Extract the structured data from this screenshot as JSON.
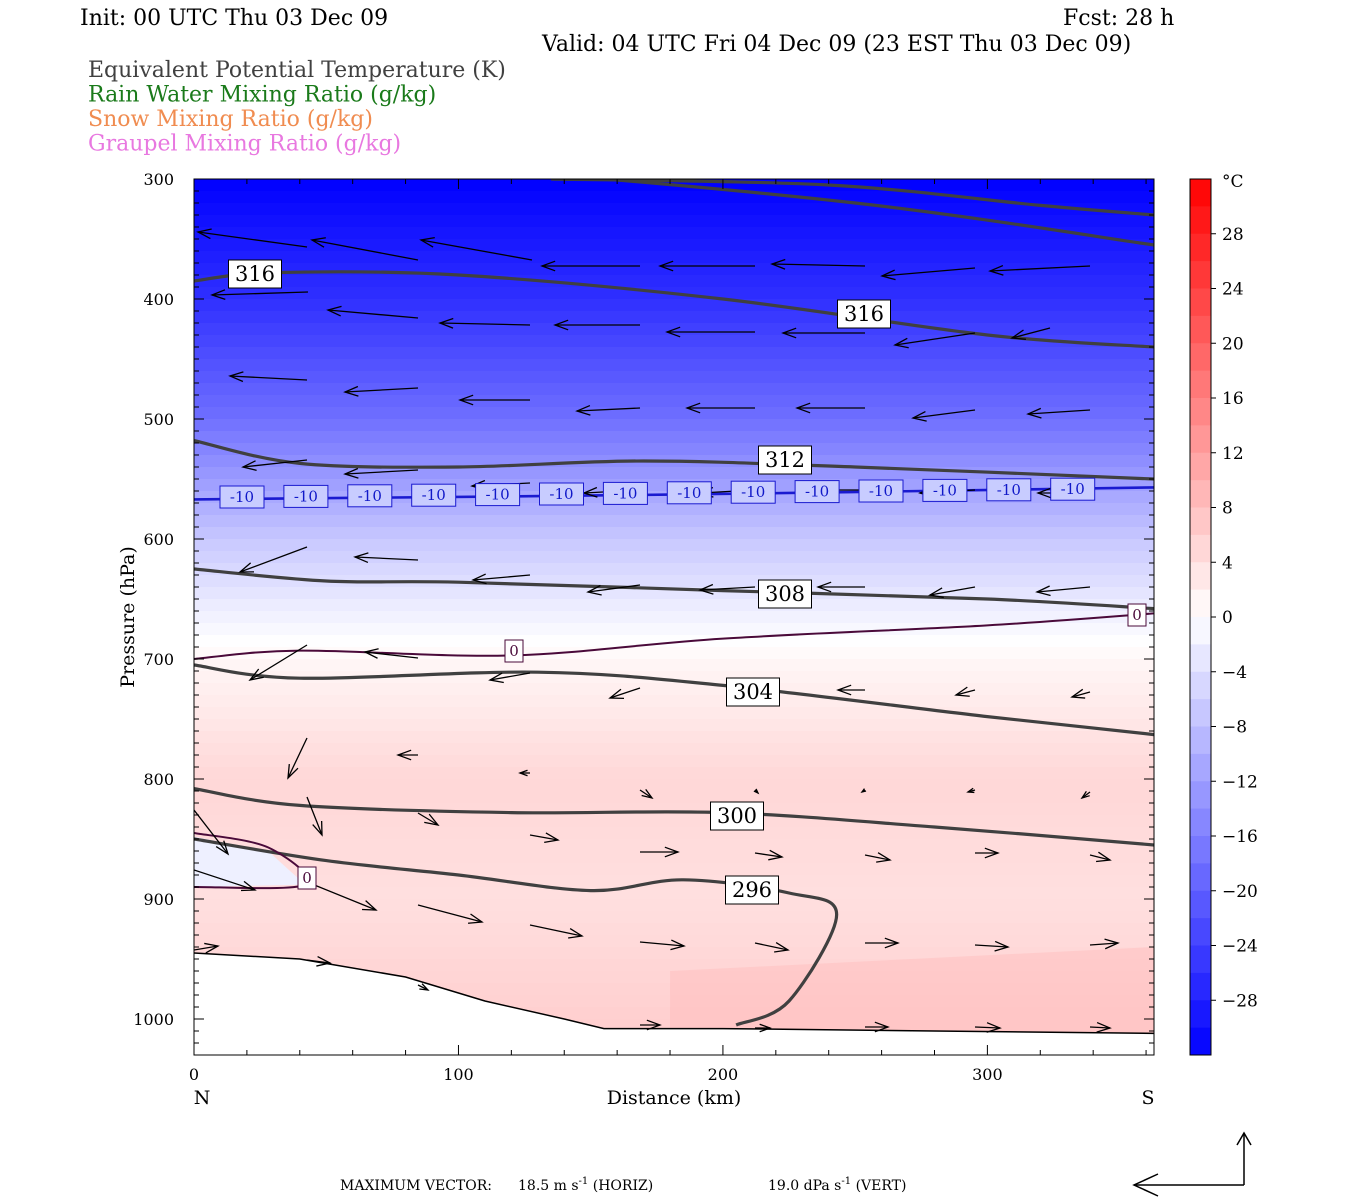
{
  "header": {
    "init": "Init: 00 UTC Thu 03 Dec 09",
    "fcst": "Fcst:   28 h",
    "valid": "Valid: 04 UTC Fri 04 Dec 09 (23 EST Thu 03 Dec 09)",
    "legend": [
      {
        "text": "Equivalent Potential Temperature (K)",
        "color": "#404040"
      },
      {
        "text": "Rain Water Mixing Ratio (g/kg)",
        "color": "#1a7a1a"
      },
      {
        "text": "Snow Mixing Ratio (g/kg)",
        "color": "#f08c50"
      },
      {
        "text": "Graupel Mixing Ratio (g/kg)",
        "color": "#e878e0"
      }
    ]
  },
  "chart_data": {
    "type": "contour-cross-section",
    "xlabel": "Distance (km)",
    "ylabel": "Pressure (hPa)",
    "xlim": [
      0,
      363
    ],
    "ylim": [
      1030,
      300
    ],
    "xticks": [
      0,
      100,
      200,
      300
    ],
    "yticks": [
      300,
      400,
      500,
      600,
      700,
      800,
      900,
      1000
    ],
    "endpoints": {
      "left": "N",
      "right": "S"
    },
    "colorbar": {
      "unit": "°C",
      "ticks": [
        28,
        24,
        20,
        16,
        12,
        8,
        4,
        0,
        -4,
        -8,
        -12,
        -16,
        -20,
        -24,
        -28
      ],
      "cold_color": "#0000ff",
      "warm_color": "#ff0000"
    },
    "theta_e_contours": [
      {
        "value": "316",
        "points": [
          [
            0,
            385
          ],
          [
            30,
            378
          ],
          [
            100,
            380
          ],
          [
            200,
            400
          ],
          [
            300,
            430
          ],
          [
            363,
            440
          ]
        ]
      },
      {
        "value": "316",
        "points": [
          [
            135,
            300
          ],
          [
            240,
            305
          ],
          [
            320,
            322
          ],
          [
            363,
            330
          ]
        ]
      },
      {
        "value": "316",
        "points": [
          [
            0,
            277
          ],
          [
            100,
            290
          ],
          [
            250,
            320
          ],
          [
            363,
            355
          ]
        ]
      },
      {
        "value": "312",
        "points": [
          [
            0,
            518
          ],
          [
            40,
            537
          ],
          [
            100,
            540
          ],
          [
            170,
            535
          ],
          [
            250,
            540
          ],
          [
            363,
            550
          ]
        ]
      },
      {
        "value": "308",
        "points": [
          [
            0,
            625
          ],
          [
            50,
            635
          ],
          [
            100,
            636
          ],
          [
            200,
            643
          ],
          [
            300,
            650
          ],
          [
            363,
            658
          ]
        ]
      },
      {
        "value": "304",
        "points": [
          [
            0,
            705
          ],
          [
            40,
            716
          ],
          [
            130,
            711
          ],
          [
            200,
            722
          ],
          [
            300,
            748
          ],
          [
            363,
            763
          ]
        ]
      },
      {
        "value": "300",
        "points": [
          [
            0,
            808
          ],
          [
            40,
            822
          ],
          [
            120,
            828
          ],
          [
            200,
            828
          ],
          [
            280,
            840
          ],
          [
            363,
            855
          ]
        ]
      },
      {
        "value": "296",
        "points": [
          [
            0,
            850
          ],
          [
            50,
            868
          ],
          [
            100,
            880
          ],
          [
            150,
            893
          ],
          [
            185,
            884
          ],
          [
            225,
            895
          ],
          [
            243,
            913
          ],
          [
            225,
            985
          ],
          [
            205,
            1005
          ]
        ]
      }
    ],
    "isotherms": [
      {
        "value": "-10",
        "pressure_left": 567,
        "pressure_right": 557
      },
      {
        "value": "0",
        "pressure_left": 700,
        "pressure_right": 662
      }
    ],
    "temperature_field_C": {
      "description_levels": [
        {
          "pressure": 300,
          "temp": -32
        },
        {
          "pressure": 400,
          "temp": -26
        },
        {
          "pressure": 500,
          "temp": -18
        },
        {
          "pressure": 600,
          "temp": -7
        },
        {
          "pressure": 660,
          "temp": -2
        },
        {
          "pressure": 700,
          "temp": 1
        },
        {
          "pressure": 800,
          "temp": 5
        },
        {
          "pressure": 900,
          "temp": 4
        },
        {
          "pressure": 1000,
          "temp": 6
        }
      ]
    },
    "contour_labels": [
      "316",
      "316",
      "312",
      "308",
      "304",
      "300",
      "296",
      "0",
      "0",
      "0",
      "-10"
    ],
    "maximum_vector": {
      "label": "MAXIMUM VECTOR:",
      "horiz": "18.5 m s",
      "horiz_unit": "(HORIZ)",
      "vert": "19.0 dPa s",
      "vert_unit": "(VERT)",
      "exponent": "-1"
    }
  }
}
